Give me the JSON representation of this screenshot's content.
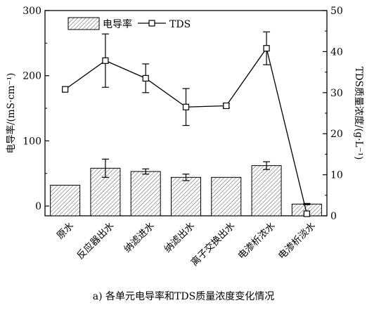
{
  "chart_data": {
    "type": "bar",
    "categories": [
      "原水",
      "反应器出水",
      "纳滤进水",
      "纳滤出水",
      "离子交换出水",
      "电渗析浓水",
      "电渗析淡水"
    ],
    "series": [
      {
        "name": "电导率",
        "type": "bar",
        "axis": "left",
        "values": [
          32,
          58,
          53,
          44,
          44,
          62,
          3
        ],
        "errors": [
          0,
          14,
          4,
          5,
          0,
          6,
          1
        ],
        "pattern": "diagonal-hatch"
      },
      {
        "name": "TDS",
        "type": "line",
        "axis": "right",
        "marker": "open-square",
        "values": [
          30.8,
          37.8,
          33.5,
          26.5,
          26.8,
          40.8,
          0.5
        ],
        "errors": [
          0,
          6.5,
          3.5,
          4.5,
          0.5,
          4,
          0
        ]
      }
    ],
    "ylabel": "电导率/(mS·cm⁻¹)",
    "ylabel_right": "TDS质量浓度/(g·L⁻¹)",
    "ylim": [
      -15,
      300
    ],
    "yticks": [
      0,
      100,
      200,
      300
    ],
    "ylim_right": [
      0,
      50
    ],
    "yticks_right": [
      0,
      10,
      20,
      30,
      40,
      50
    ],
    "legend": "top-left",
    "grid": false
  },
  "caption": "a) 各单元电导率和TDS质量浓度变化情况"
}
